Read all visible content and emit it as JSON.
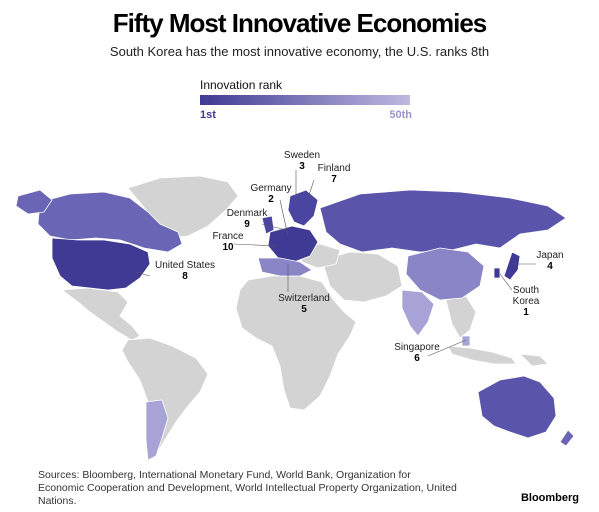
{
  "header": {
    "title": "Fifty Most Innovative Economies",
    "subtitle": "South Korea has the most innovative economy, the U.S. ranks 8th"
  },
  "legend": {
    "title": "Innovation rank",
    "min_label": "1st",
    "max_label": "50th",
    "color_start": "#3f3a93",
    "color_end": "#bdb9e0"
  },
  "colors": {
    "land_unranked": "#d3d3d3",
    "border": "#ffffff",
    "rank_dark": "#3f3a93",
    "rank_mid": "#6a65b5",
    "rank_light": "#a8a3d7"
  },
  "countries": [
    {
      "name": "Sweden",
      "rank": "3"
    },
    {
      "name": "Finland",
      "rank": "7"
    },
    {
      "name": "Germany",
      "rank": "2"
    },
    {
      "name": "Denmark",
      "rank": "9"
    },
    {
      "name": "France",
      "rank": "10"
    },
    {
      "name": "Japan",
      "rank": "4"
    },
    {
      "name": "United States",
      "rank": "8"
    },
    {
      "name": "South Korea",
      "rank": "1"
    },
    {
      "name": "Switzerland",
      "rank": "5"
    },
    {
      "name": "Singapore",
      "rank": "6"
    }
  ],
  "footer": {
    "sources": "Sources: Bloomberg, International Monetary Fund, World Bank, Organization for Economic Cooperation and Development, World Intellectual Property Organization, United Nations.",
    "brand": "Bloomberg"
  }
}
